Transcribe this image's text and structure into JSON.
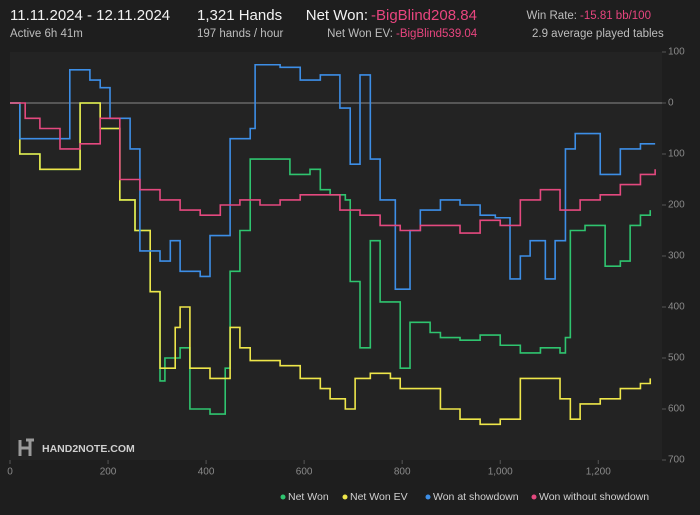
{
  "header": {
    "date_range": "11.11.2024 - 12.11.2024",
    "active": "Active 6h 41m",
    "hands": "1,321 Hands",
    "hands_per_hour": "197 hands / hour",
    "net_won_label": "Net Won:",
    "net_won_value": "-BigBlind208.84",
    "net_won_ev_label": "Net Won  EV:",
    "net_won_ev_value": "-BigBlind539.04",
    "win_rate_label": "Win Rate:",
    "win_rate_value": "-15.81 bb/100",
    "tables": "2.9 average played tables",
    "logo": "HAND2NOTE.COM"
  },
  "chart_data": {
    "type": "line",
    "step": true,
    "xlim": [
      0,
      1330
    ],
    "xticks": [
      0,
      200,
      400,
      600,
      800,
      {
        "value": 1000,
        "label": "1,000"
      },
      {
        "value": 1200,
        "label": "1,200"
      }
    ],
    "ylim": [
      -700,
      100
    ],
    "yticks": [
      100,
      0,
      {
        "value": -100,
        "label": "100"
      },
      {
        "value": -200,
        "label": "200"
      },
      {
        "value": -300,
        "label": "300"
      },
      {
        "value": -400,
        "label": "400"
      },
      {
        "value": -500,
        "label": "500"
      },
      {
        "value": -600,
        "label": "600"
      },
      {
        "value": -700,
        "label": "700"
      }
    ],
    "series": [
      {
        "name": "Net Won",
        "color": "#2fc46f",
        "x": [
          0,
          20,
          61,
          82,
          143,
          163,
          184,
          224,
          235,
          255,
          286,
          306,
          316,
          347,
          367,
          408,
          439,
          449,
          469,
          490,
          531,
          571,
          612,
          633,
          653,
          684,
          694,
          714,
          735,
          755,
          776,
          796,
          816,
          837,
          857,
          878,
          918,
          959,
          1000,
          1041,
          1082,
          1122,
          1133,
          1143,
          1173,
          1204,
          1214,
          1245,
          1265,
          1286,
          1306
        ],
        "values": [
          0,
          -100,
          -130,
          -130,
          0,
          0,
          -50,
          -190,
          -190,
          -250,
          -370,
          -545,
          -500,
          -480,
          -600,
          -610,
          -520,
          -330,
          -250,
          -110,
          -110,
          -140,
          -130,
          -170,
          -180,
          -190,
          -350,
          -480,
          -270,
          -390,
          -390,
          -520,
          -430,
          -430,
          -450,
          -460,
          -465,
          -455,
          -475,
          -490,
          -480,
          -490,
          -460,
          -250,
          -240,
          -240,
          -320,
          -310,
          -240,
          -220,
          -210
        ]
      },
      {
        "name": "Net Won  EV",
        "color": "#eee64a",
        "x": [
          0,
          20,
          61,
          82,
          143,
          163,
          184,
          224,
          235,
          255,
          286,
          306,
          337,
          347,
          367,
          388,
          408,
          429,
          449,
          469,
          490,
          551,
          592,
          633,
          653,
          684,
          704,
          735,
          776,
          796,
          837,
          878,
          918,
          959,
          1000,
          1041,
          1082,
          1122,
          1143,
          1163,
          1204,
          1245,
          1286,
          1306
        ],
        "values": [
          0,
          -100,
          -130,
          -130,
          0,
          0,
          -50,
          -190,
          -190,
          -250,
          -370,
          -520,
          -440,
          -400,
          -520,
          -520,
          -540,
          -540,
          -440,
          -480,
          -505,
          -515,
          -540,
          -560,
          -580,
          -600,
          -540,
          -530,
          -540,
          -560,
          -560,
          -600,
          -620,
          -630,
          -620,
          -540,
          -540,
          -580,
          -620,
          -590,
          -580,
          -560,
          -550,
          -540
        ]
      },
      {
        "name": "Won at showdown",
        "color": "#3d8ee6",
        "x": [
          0,
          20,
          82,
          122,
          163,
          184,
          204,
          245,
          265,
          306,
          327,
          347,
          388,
          408,
          449,
          490,
          500,
          551,
          592,
          633,
          673,
          694,
          714,
          735,
          755,
          786,
          816,
          837,
          878,
          918,
          959,
          990,
          1020,
          1041,
          1061,
          1092,
          1112,
          1133,
          1153,
          1184,
          1204,
          1245,
          1286,
          1316
        ],
        "values": [
          0,
          -70,
          -70,
          65,
          45,
          30,
          -30,
          -90,
          -290,
          -310,
          -270,
          -330,
          -340,
          -260,
          -70,
          -50,
          75,
          70,
          45,
          55,
          -10,
          -120,
          55,
          -110,
          -190,
          -365,
          -250,
          -210,
          -190,
          -200,
          -220,
          -225,
          -345,
          -300,
          -270,
          -345,
          -270,
          -90,
          -60,
          -60,
          -140,
          -90,
          -80,
          -80
        ]
      },
      {
        "name": "Won without showdown",
        "color": "#e4497f",
        "x": [
          0,
          31,
          61,
          102,
          143,
          184,
          224,
          265,
          306,
          347,
          388,
          429,
          469,
          510,
          551,
          592,
          633,
          673,
          714,
          755,
          796,
          837,
          878,
          918,
          959,
          1000,
          1041,
          1082,
          1122,
          1163,
          1204,
          1245,
          1286,
          1316
        ],
        "values": [
          0,
          -30,
          -50,
          -90,
          -80,
          -30,
          -150,
          -170,
          -190,
          -210,
          -220,
          -200,
          -190,
          -200,
          -190,
          -180,
          -180,
          -210,
          -220,
          -240,
          -250,
          -240,
          -240,
          -255,
          -230,
          -240,
          -190,
          -170,
          -210,
          -190,
          -180,
          -160,
          -140,
          -130
        ]
      }
    ]
  }
}
